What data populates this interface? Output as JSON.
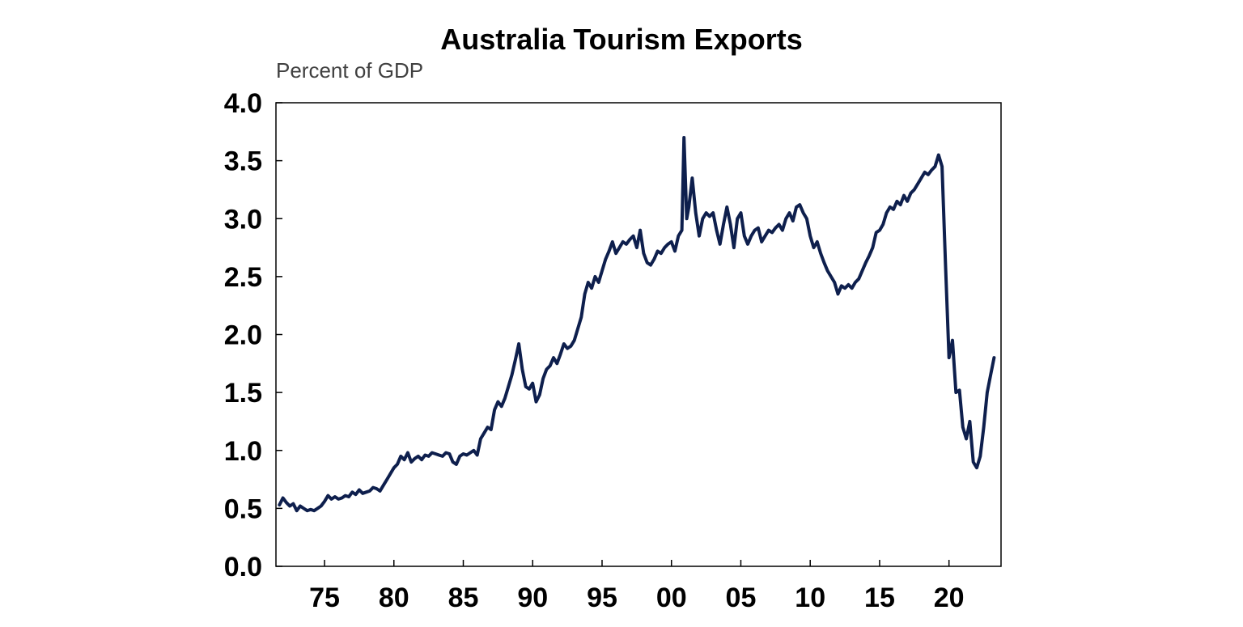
{
  "chart_data": {
    "type": "line",
    "title": "Australia Tourism Exports",
    "subtitle": "Percent of GDP",
    "xlabel": "",
    "ylabel": "",
    "ylim": [
      0,
      4.0
    ],
    "xlim": [
      1971.5,
      2023.75
    ],
    "grid": false,
    "y_ticks": [
      {
        "value": 0.0,
        "label": "0.0"
      },
      {
        "value": 0.5,
        "label": "0.5"
      },
      {
        "value": 1.0,
        "label": "1.0"
      },
      {
        "value": 1.5,
        "label": "1.5"
      },
      {
        "value": 2.0,
        "label": "2.0"
      },
      {
        "value": 2.5,
        "label": "2.5"
      },
      {
        "value": 3.0,
        "label": "3.0"
      },
      {
        "value": 3.5,
        "label": "3.5"
      },
      {
        "value": 4.0,
        "label": "4.0"
      }
    ],
    "x_ticks": [
      {
        "value": 1975,
        "label": "75"
      },
      {
        "value": 1980,
        "label": "80"
      },
      {
        "value": 1985,
        "label": "85"
      },
      {
        "value": 1990,
        "label": "90"
      },
      {
        "value": 1995,
        "label": "95"
      },
      {
        "value": 2000,
        "label": "00"
      },
      {
        "value": 2005,
        "label": "05"
      },
      {
        "value": 2010,
        "label": "10"
      },
      {
        "value": 2015,
        "label": "15"
      },
      {
        "value": 2020,
        "label": "20"
      }
    ],
    "series": [
      {
        "color": "#0e1f4d",
        "x": [
          1971.75,
          1972.0,
          1972.25,
          1972.5,
          1972.75,
          1973.0,
          1973.25,
          1973.5,
          1973.75,
          1974.0,
          1974.25,
          1974.5,
          1974.75,
          1975.0,
          1975.25,
          1975.5,
          1975.75,
          1976.0,
          1976.25,
          1976.5,
          1976.75,
          1977.0,
          1977.25,
          1977.5,
          1977.75,
          1978.0,
          1978.25,
          1978.5,
          1978.75,
          1979.0,
          1979.25,
          1979.5,
          1979.75,
          1980.0,
          1980.25,
          1980.5,
          1980.75,
          1981.0,
          1981.25,
          1981.5,
          1981.75,
          1982.0,
          1982.25,
          1982.5,
          1982.75,
          1983.0,
          1983.25,
          1983.5,
          1983.75,
          1984.0,
          1984.25,
          1984.5,
          1984.75,
          1985.0,
          1985.25,
          1985.5,
          1985.75,
          1986.0,
          1986.25,
          1986.5,
          1986.75,
          1987.0,
          1987.25,
          1987.5,
          1987.75,
          1988.0,
          1988.25,
          1988.5,
          1988.75,
          1989.0,
          1989.25,
          1989.5,
          1989.75,
          1990.0,
          1990.25,
          1990.5,
          1990.75,
          1991.0,
          1991.25,
          1991.5,
          1991.75,
          1992.0,
          1992.25,
          1992.5,
          1992.75,
          1993.0,
          1993.25,
          1993.5,
          1993.75,
          1994.0,
          1994.25,
          1994.5,
          1994.75,
          1995.0,
          1995.25,
          1995.5,
          1995.75,
          1996.0,
          1996.25,
          1996.5,
          1996.75,
          1997.0,
          1997.25,
          1997.5,
          1997.75,
          1998.0,
          1998.25,
          1998.5,
          1998.75,
          1999.0,
          1999.25,
          1999.5,
          1999.75,
          2000.0,
          2000.25,
          2000.5,
          2000.75,
          2000.9,
          2001.1,
          2001.25,
          2001.5,
          2001.75,
          2002.0,
          2002.25,
          2002.5,
          2002.75,
          2003.0,
          2003.25,
          2003.5,
          2003.75,
          2004.0,
          2004.25,
          2004.5,
          2004.75,
          2005.0,
          2005.25,
          2005.5,
          2005.75,
          2006.0,
          2006.25,
          2006.5,
          2006.75,
          2007.0,
          2007.25,
          2007.5,
          2007.75,
          2008.0,
          2008.25,
          2008.5,
          2008.75,
          2009.0,
          2009.25,
          2009.5,
          2009.75,
          2010.0,
          2010.25,
          2010.5,
          2010.75,
          2011.0,
          2011.25,
          2011.5,
          2011.75,
          2012.0,
          2012.25,
          2012.5,
          2012.75,
          2013.0,
          2013.25,
          2013.5,
          2013.75,
          2014.0,
          2014.25,
          2014.5,
          2014.75,
          2015.0,
          2015.25,
          2015.5,
          2015.75,
          2016.0,
          2016.25,
          2016.5,
          2016.75,
          2017.0,
          2017.25,
          2017.5,
          2017.75,
          2018.0,
          2018.25,
          2018.5,
          2018.75,
          2019.0,
          2019.25,
          2019.5,
          2019.75,
          2020.0,
          2020.25,
          2020.5,
          2020.75,
          2021.0,
          2021.25,
          2021.5,
          2021.75,
          2022.0,
          2022.25,
          2022.5,
          2022.75,
          2023.0,
          2023.25
        ],
        "values": [
          0.53,
          0.59,
          0.55,
          0.52,
          0.54,
          0.48,
          0.52,
          0.5,
          0.48,
          0.49,
          0.48,
          0.5,
          0.52,
          0.56,
          0.61,
          0.58,
          0.6,
          0.58,
          0.59,
          0.61,
          0.6,
          0.64,
          0.62,
          0.66,
          0.63,
          0.64,
          0.65,
          0.68,
          0.67,
          0.65,
          0.7,
          0.75,
          0.8,
          0.85,
          0.88,
          0.95,
          0.92,
          0.98,
          0.9,
          0.93,
          0.95,
          0.92,
          0.96,
          0.95,
          0.98,
          0.97,
          0.96,
          0.95,
          0.98,
          0.97,
          0.9,
          0.88,
          0.95,
          0.97,
          0.96,
          0.98,
          1.0,
          0.96,
          1.1,
          1.15,
          1.2,
          1.18,
          1.35,
          1.42,
          1.38,
          1.45,
          1.55,
          1.65,
          1.78,
          1.92,
          1.7,
          1.55,
          1.53,
          1.58,
          1.42,
          1.48,
          1.62,
          1.7,
          1.73,
          1.8,
          1.75,
          1.83,
          1.92,
          1.88,
          1.9,
          1.95,
          2.05,
          2.15,
          2.35,
          2.45,
          2.4,
          2.5,
          2.45,
          2.55,
          2.65,
          2.72,
          2.8,
          2.7,
          2.75,
          2.8,
          2.78,
          2.82,
          2.85,
          2.75,
          2.9,
          2.7,
          2.62,
          2.6,
          2.65,
          2.72,
          2.7,
          2.75,
          2.78,
          2.8,
          2.72,
          2.85,
          2.9,
          3.7,
          3.0,
          3.1,
          3.35,
          3.05,
          2.85,
          3.0,
          3.05,
          3.02,
          3.05,
          2.9,
          2.78,
          2.95,
          3.1,
          2.95,
          2.75,
          3.0,
          3.05,
          2.85,
          2.78,
          2.85,
          2.9,
          2.92,
          2.8,
          2.85,
          2.9,
          2.88,
          2.92,
          2.95,
          2.9,
          3.0,
          3.05,
          2.98,
          3.1,
          3.12,
          3.05,
          3.0,
          2.85,
          2.75,
          2.8,
          2.7,
          2.62,
          2.55,
          2.5,
          2.45,
          2.35,
          2.42,
          2.4,
          2.43,
          2.4,
          2.45,
          2.48,
          2.55,
          2.62,
          2.68,
          2.75,
          2.88,
          2.9,
          2.95,
          3.05,
          3.1,
          3.08,
          3.15,
          3.12,
          3.2,
          3.15,
          3.22,
          3.25,
          3.3,
          3.35,
          3.4,
          3.38,
          3.42,
          3.45,
          3.55,
          3.45,
          2.6,
          1.8,
          1.95,
          1.5,
          1.52,
          1.2,
          1.1,
          1.25,
          0.9,
          0.85,
          0.95,
          1.2,
          1.5,
          1.65,
          1.8
        ]
      }
    ]
  }
}
